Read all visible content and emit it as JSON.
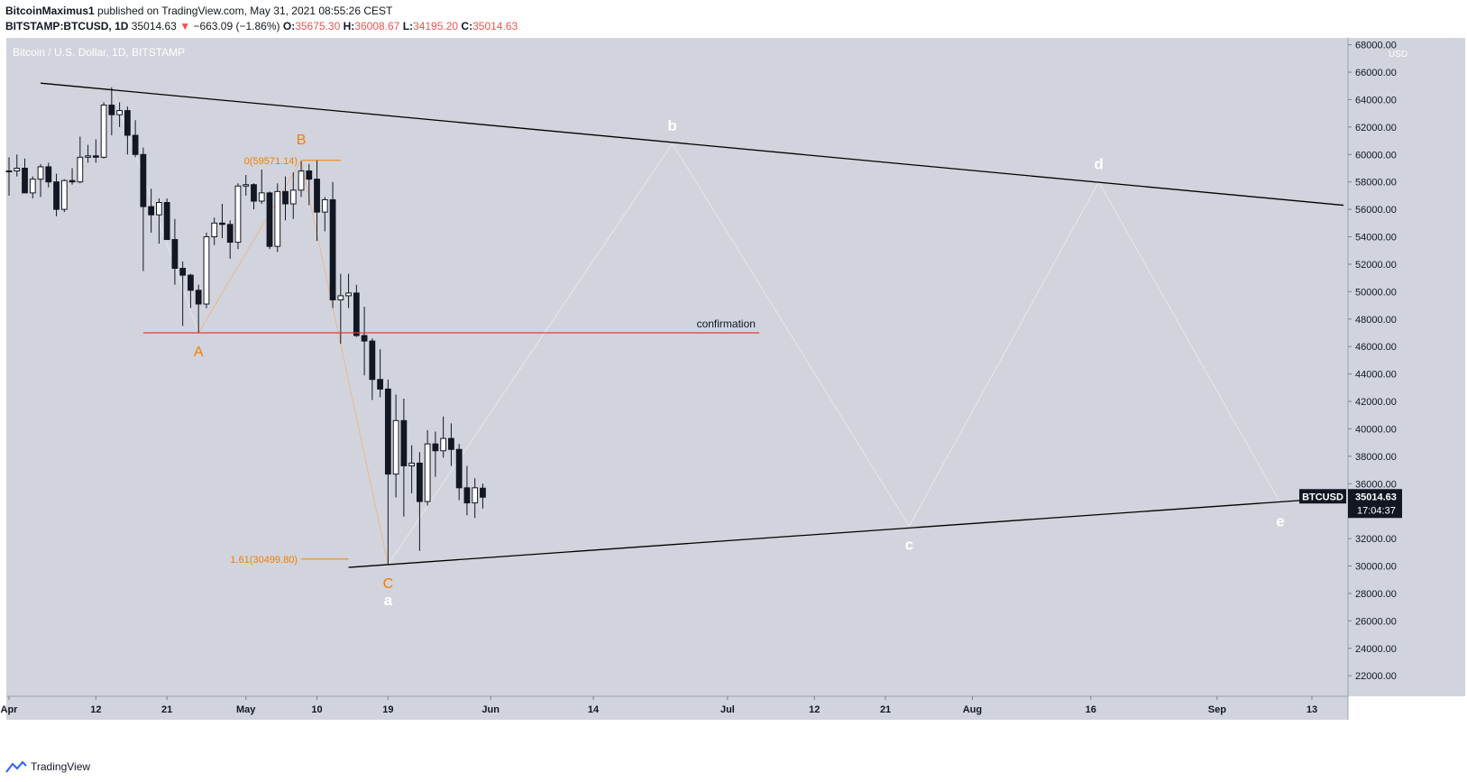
{
  "header": {
    "author": "BitcoinMaximus1",
    "published_text": "published on TradingView.com, May 31, 2021 08:55:26 CEST",
    "symbol": "BITSTAMP:BTCUSD, 1D",
    "last": "35014.63",
    "change": "−663.09 (−1.86%)",
    "o_label": "O:",
    "o": "35675.30",
    "h_label": "H:",
    "h": "36008.67",
    "l_label": "L:",
    "l": "34195.20",
    "c_label": "C:",
    "c": "35014.63"
  },
  "footer": {
    "brand": "TradingView"
  },
  "colors": {
    "bg": "#d1d4dc",
    "up": "#ffffff",
    "down": "#131722",
    "fib": "#f57c00",
    "confirmation": "#e53935",
    "wave": "#e8e8e8",
    "trendline": "#000000"
  },
  "chart_data": {
    "type": "candlestick",
    "title": "Bitcoin / U.S. Dollar, 1D, BITSTAMP",
    "currency_label": "USD",
    "y_ticks": [
      22000,
      24000,
      26000,
      28000,
      30000,
      32000,
      34000,
      36000,
      38000,
      40000,
      42000,
      44000,
      46000,
      48000,
      50000,
      52000,
      54000,
      56000,
      58000,
      60000,
      62000,
      64000,
      66000,
      68000
    ],
    "y_tick_labels": [
      "22000.00",
      "24000.00",
      "26000.00",
      "28000.00",
      "30000.00",
      "32000.00",
      "34000.00",
      "36000.00",
      "38000.00",
      "40000.00",
      "42000.00",
      "44000.00",
      "46000.00",
      "48000.00",
      "50000.00",
      "52000.00",
      "54000.00",
      "56000.00",
      "58000.00",
      "60000.00",
      "62000.00",
      "64000.00",
      "66000.00",
      "68000.00"
    ],
    "x_ticks": [
      {
        "date": "2021-04-01",
        "label": "Apr"
      },
      {
        "date": "2021-04-12",
        "label": "12"
      },
      {
        "date": "2021-04-21",
        "label": "21"
      },
      {
        "date": "2021-05-01",
        "label": "May"
      },
      {
        "date": "2021-05-10",
        "label": "10"
      },
      {
        "date": "2021-05-19",
        "label": "19"
      },
      {
        "date": "2021-06-01",
        "label": "Jun"
      },
      {
        "date": "2021-06-14",
        "label": "14"
      },
      {
        "date": "2021-07-01",
        "label": "Jul"
      },
      {
        "date": "2021-07-12",
        "label": "12"
      },
      {
        "date": "2021-07-21",
        "label": "21"
      },
      {
        "date": "2021-08-01",
        "label": "Aug"
      },
      {
        "date": "2021-08-16",
        "label": "16"
      },
      {
        "date": "2021-09-01",
        "label": "Sep"
      },
      {
        "date": "2021-09-13",
        "label": "13"
      }
    ],
    "ylim": [
      20500,
      68500
    ],
    "xlim": [
      "2021-04-01",
      "2021-09-17"
    ],
    "candles": [
      {
        "date": "2021-04-01",
        "o": 58800,
        "h": 59800,
        "l": 57000,
        "c": 58800
      },
      {
        "date": "2021-04-02",
        "o": 58800,
        "h": 60000,
        "l": 58400,
        "c": 59000
      },
      {
        "date": "2021-04-03",
        "o": 59000,
        "h": 59700,
        "l": 57200,
        "c": 57200
      },
      {
        "date": "2021-04-04",
        "o": 57200,
        "h": 58400,
        "l": 56800,
        "c": 58200
      },
      {
        "date": "2021-04-05",
        "o": 58200,
        "h": 59300,
        "l": 56900,
        "c": 59100
      },
      {
        "date": "2021-04-06",
        "o": 59100,
        "h": 59400,
        "l": 57600,
        "c": 58000
      },
      {
        "date": "2021-04-07",
        "o": 58000,
        "h": 58600,
        "l": 55500,
        "c": 56000
      },
      {
        "date": "2021-04-08",
        "o": 56000,
        "h": 58200,
        "l": 55800,
        "c": 58100
      },
      {
        "date": "2021-04-09",
        "o": 58100,
        "h": 59000,
        "l": 57800,
        "c": 58000
      },
      {
        "date": "2021-04-10",
        "o": 58000,
        "h": 61300,
        "l": 57900,
        "c": 59800
      },
      {
        "date": "2021-04-11",
        "o": 59800,
        "h": 60700,
        "l": 59400,
        "c": 59900
      },
      {
        "date": "2021-04-12",
        "o": 59900,
        "h": 61100,
        "l": 59400,
        "c": 59800
      },
      {
        "date": "2021-04-13",
        "o": 59800,
        "h": 63800,
        "l": 59700,
        "c": 63600
      },
      {
        "date": "2021-04-14",
        "o": 63600,
        "h": 64900,
        "l": 61400,
        "c": 62900
      },
      {
        "date": "2021-04-15",
        "o": 62900,
        "h": 63800,
        "l": 62000,
        "c": 63200
      },
      {
        "date": "2021-04-16",
        "o": 63200,
        "h": 63500,
        "l": 60000,
        "c": 61400
      },
      {
        "date": "2021-04-17",
        "o": 61400,
        "h": 62500,
        "l": 59800,
        "c": 60000
      },
      {
        "date": "2021-04-18",
        "o": 60000,
        "h": 60500,
        "l": 51500,
        "c": 56200
      },
      {
        "date": "2021-04-19",
        "o": 56200,
        "h": 57500,
        "l": 54300,
        "c": 55600
      },
      {
        "date": "2021-04-20",
        "o": 55600,
        "h": 56800,
        "l": 53500,
        "c": 56500
      },
      {
        "date": "2021-04-21",
        "o": 56500,
        "h": 56800,
        "l": 53800,
        "c": 53800
      },
      {
        "date": "2021-04-22",
        "o": 53800,
        "h": 55300,
        "l": 50500,
        "c": 51700
      },
      {
        "date": "2021-04-23",
        "o": 51700,
        "h": 52200,
        "l": 47500,
        "c": 51200
      },
      {
        "date": "2021-04-24",
        "o": 51200,
        "h": 51300,
        "l": 48800,
        "c": 50100
      },
      {
        "date": "2021-04-25",
        "o": 50100,
        "h": 50500,
        "l": 47000,
        "c": 49100
      },
      {
        "date": "2021-04-26",
        "o": 49100,
        "h": 54300,
        "l": 48800,
        "c": 54000
      },
      {
        "date": "2021-04-27",
        "o": 54000,
        "h": 55400,
        "l": 53400,
        "c": 55000
      },
      {
        "date": "2021-04-28",
        "o": 55000,
        "h": 56400,
        "l": 53900,
        "c": 54900
      },
      {
        "date": "2021-04-29",
        "o": 54900,
        "h": 55200,
        "l": 52400,
        "c": 53600
      },
      {
        "date": "2021-04-30",
        "o": 53600,
        "h": 57900,
        "l": 53100,
        "c": 57700
      },
      {
        "date": "2021-05-01",
        "o": 57700,
        "h": 58500,
        "l": 57000,
        "c": 57800
      },
      {
        "date": "2021-05-02",
        "o": 57800,
        "h": 57900,
        "l": 56000,
        "c": 56600
      },
      {
        "date": "2021-05-03",
        "o": 56600,
        "h": 58900,
        "l": 56400,
        "c": 57200
      },
      {
        "date": "2021-05-04",
        "o": 57200,
        "h": 57300,
        "l": 53100,
        "c": 53300
      },
      {
        "date": "2021-05-05",
        "o": 53300,
        "h": 57900,
        "l": 52900,
        "c": 57300
      },
      {
        "date": "2021-05-06",
        "o": 57300,
        "h": 58400,
        "l": 55200,
        "c": 56400
      },
      {
        "date": "2021-05-07",
        "o": 56400,
        "h": 58700,
        "l": 55300,
        "c": 57400
      },
      {
        "date": "2021-05-08",
        "o": 57400,
        "h": 59500,
        "l": 56900,
        "c": 58800
      },
      {
        "date": "2021-05-09",
        "o": 58800,
        "h": 59300,
        "l": 56300,
        "c": 58200
      },
      {
        "date": "2021-05-10",
        "o": 58200,
        "h": 59600,
        "l": 53700,
        "c": 55800
      },
      {
        "date": "2021-05-11",
        "o": 55800,
        "h": 56900,
        "l": 54400,
        "c": 56700
      },
      {
        "date": "2021-05-12",
        "o": 56700,
        "h": 58000,
        "l": 48800,
        "c": 49400
      },
      {
        "date": "2021-05-13",
        "o": 49400,
        "h": 51300,
        "l": 46200,
        "c": 49700
      },
      {
        "date": "2021-05-14",
        "o": 49700,
        "h": 51300,
        "l": 48800,
        "c": 49900
      },
      {
        "date": "2021-05-15",
        "o": 49900,
        "h": 50500,
        "l": 46700,
        "c": 46800
      },
      {
        "date": "2021-05-16",
        "o": 46800,
        "h": 48900,
        "l": 43900,
        "c": 46400
      },
      {
        "date": "2021-05-17",
        "o": 46400,
        "h": 46600,
        "l": 42100,
        "c": 43600
      },
      {
        "date": "2021-05-18",
        "o": 43600,
        "h": 45800,
        "l": 42300,
        "c": 42900
      },
      {
        "date": "2021-05-19",
        "o": 42900,
        "h": 43600,
        "l": 30100,
        "c": 36700
      },
      {
        "date": "2021-05-20",
        "o": 36700,
        "h": 42500,
        "l": 35000,
        "c": 40600
      },
      {
        "date": "2021-05-21",
        "o": 40600,
        "h": 42200,
        "l": 33600,
        "c": 37300
      },
      {
        "date": "2021-05-22",
        "o": 37300,
        "h": 38800,
        "l": 35300,
        "c": 37500
      },
      {
        "date": "2021-05-23",
        "o": 37500,
        "h": 38300,
        "l": 31100,
        "c": 34700
      },
      {
        "date": "2021-05-24",
        "o": 34700,
        "h": 39900,
        "l": 34400,
        "c": 38900
      },
      {
        "date": "2021-05-25",
        "o": 38900,
        "h": 39800,
        "l": 36500,
        "c": 38400
      },
      {
        "date": "2021-05-26",
        "o": 38400,
        "h": 40900,
        "l": 37900,
        "c": 39300
      },
      {
        "date": "2021-05-27",
        "o": 39300,
        "h": 40400,
        "l": 37300,
        "c": 38500
      },
      {
        "date": "2021-05-28",
        "o": 38500,
        "h": 38900,
        "l": 34800,
        "c": 35700
      },
      {
        "date": "2021-05-29",
        "o": 35700,
        "h": 37300,
        "l": 33700,
        "c": 34600
      },
      {
        "date": "2021-05-30",
        "o": 34600,
        "h": 36400,
        "l": 33500,
        "c": 35700
      },
      {
        "date": "2021-05-31",
        "o": 35675,
        "h": 36009,
        "l": 34195,
        "c": 35015
      }
    ],
    "annotations": {
      "upper_trendline": [
        {
          "date": "2021-04-05",
          "price": 65200
        },
        {
          "date": "2021-09-17",
          "price": 56300
        }
      ],
      "lower_trendline": [
        {
          "date": "2021-05-14",
          "price": 29900
        },
        {
          "date": "2021-09-17",
          "price": 35000
        }
      ],
      "confirmation_line": {
        "price": 47000,
        "from": "2021-04-18",
        "to": "2021-07-05",
        "label": "confirmation"
      },
      "fib_levels": [
        {
          "label": "0(59571.14)",
          "price": 59571.14,
          "from": "2021-05-08",
          "to": "2021-05-13"
        },
        {
          "label": "1.61(30499.80)",
          "price": 30499.8,
          "from": "2021-05-08",
          "to": "2021-05-14"
        }
      ],
      "orange_wave": [
        {
          "date": "2021-04-14",
          "price": 64900
        },
        {
          "date": "2021-04-25",
          "price": 47000,
          "label": "A"
        },
        {
          "date": "2021-05-08",
          "price": 59571,
          "label": "B"
        },
        {
          "date": "2021-05-19",
          "price": 30100,
          "label": "C"
        }
      ],
      "white_wave": [
        {
          "date": "2021-05-19",
          "price": 30100,
          "label": "a"
        },
        {
          "date": "2021-06-24",
          "price": 60800,
          "label": "b"
        },
        {
          "date": "2021-07-24",
          "price": 32900,
          "label": "c"
        },
        {
          "date": "2021-08-17",
          "price": 58000,
          "label": "d"
        },
        {
          "date": "2021-09-09",
          "price": 34600,
          "label": "e"
        }
      ]
    },
    "price_label": {
      "symbol": "BTCUSD",
      "price": "35014.63",
      "countdown": "17:04:37"
    }
  }
}
